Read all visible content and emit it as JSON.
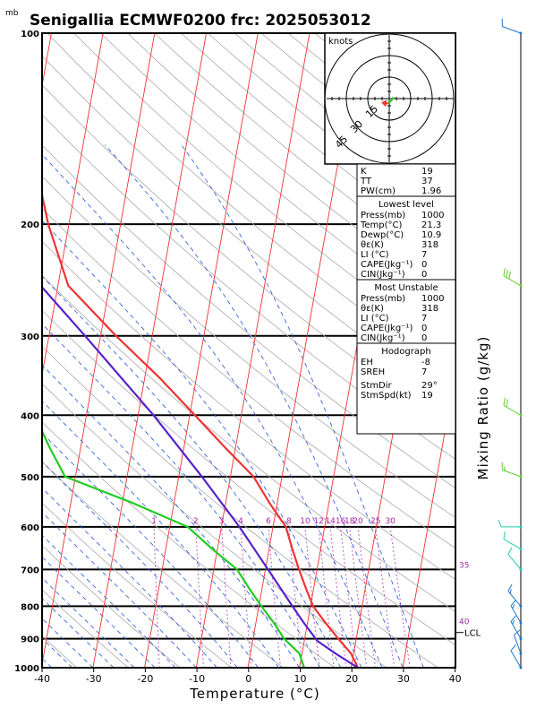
{
  "title": "Senigallia ECMWF0200  frc: 2025053012",
  "pressure_unit": "mb",
  "x_axis_label": "Temperature (°C)",
  "mixing_ratio_label": "Mixing Ratio (g/kg)",
  "hodograph": {
    "unit_label": "knots",
    "ring_labels": [
      "15",
      "30",
      "45"
    ]
  },
  "lcl_label": "LCL",
  "mixing_ratio_lines": [
    "1",
    "2",
    "3",
    "4",
    "6",
    "8",
    "10",
    "12",
    "14",
    "16",
    "18",
    "20",
    "25",
    "30"
  ],
  "theta_label_values": [
    "35",
    "40"
  ],
  "indices": {
    "rows": [
      {
        "label": "K",
        "value": "19"
      },
      {
        "label": "TT",
        "value": "37"
      },
      {
        "label": "PW(cm)",
        "value": "1.96"
      }
    ]
  },
  "lowest_level": {
    "header": "Lowest level",
    "rows": [
      {
        "label": "Press(mb)",
        "value": "1000"
      },
      {
        "label": "Temp(°C)",
        "value": "21.3"
      },
      {
        "label": "Dewp(°C)",
        "value": "10.9"
      },
      {
        "label": "θε(K)",
        "value": "318"
      },
      {
        "label": "LI (°C)",
        "value": "7"
      },
      {
        "label": "CAPE(Jkg⁻¹)",
        "value": "0"
      },
      {
        "label": "CIN(Jkg⁻¹)",
        "value": "0"
      }
    ]
  },
  "most_unstable": {
    "header": "Most Unstable",
    "rows": [
      {
        "label": "Press(mb)",
        "value": "1000"
      },
      {
        "label": "θε(K)",
        "value": "318"
      },
      {
        "label": "LI (°C)",
        "value": "7"
      },
      {
        "label": "CAPE(Jkg⁻¹)",
        "value": "0"
      },
      {
        "label": "CIN(Jkg⁻¹)",
        "value": "0"
      }
    ]
  },
  "hodograph_box": {
    "header": "Hodograph",
    "rows": [
      {
        "label": "EH",
        "value": "-8"
      },
      {
        "label": "SREH",
        "value": "7"
      },
      {
        "label": "StmDir",
        "value": "29°"
      },
      {
        "label": "StmSpd(kt)",
        "value": "19"
      }
    ]
  },
  "colors": {
    "temperature": "#ee3333",
    "dewpoint": "#22cc22",
    "parcel": "#5522cc",
    "isotherm": "#ee3333",
    "dry_adiabat": "#aaaaaa",
    "moist_adiabat": "#2255dd",
    "mixing_ratio": "#aa22aa",
    "wind_barbs_upper": "#2277cc",
    "wind_barbs_lower": "#22ccaa"
  },
  "chart_data": {
    "type": "line",
    "diagram": "skew-T log-p",
    "y_unit": "hPa",
    "x_unit": "°C",
    "y_scale": "log",
    "ylim": [
      1000,
      100
    ],
    "xlim": [
      -40,
      40
    ],
    "x_ticks": [
      -40,
      -30,
      -20,
      -10,
      0,
      10,
      20,
      30,
      40
    ],
    "y_ticks": [
      100,
      200,
      300,
      400,
      500,
      600,
      700,
      800,
      900,
      1000
    ],
    "series": [
      {
        "pressure": [
          1000,
          950,
          900,
          850,
          800,
          750,
          700,
          650,
          600,
          550,
          500,
          450,
          400,
          350,
          300,
          250,
          200,
          150,
          100
        ],
        "values": [
          21.3,
          19.5,
          16.5,
          13.5,
          10.5,
          8.5,
          6.5,
          4.5,
          2.5,
          -1.5,
          -5.5,
          -12,
          -19,
          -27,
          -37,
          -48,
          -54,
          -60,
          -66
        ]
      },
      {
        "pressure": [
          1000,
          950,
          900,
          850,
          800,
          750,
          700,
          650,
          600,
          550,
          500,
          450,
          400,
          350,
          300,
          250,
          200,
          150,
          100
        ],
        "values": [
          10.9,
          9.5,
          6,
          3.5,
          0.5,
          -2.5,
          -5.5,
          -11,
          -16.5,
          -28,
          -42,
          -46,
          -50,
          -54,
          -58,
          -63,
          -68,
          -73,
          -79
        ]
      },
      {
        "pressure": [
          1000,
          950,
          907,
          850,
          800,
          700,
          600,
          500,
          400,
          300,
          200,
          120
        ],
        "values": [
          21.3,
          16.5,
          12.5,
          9.3,
          6.5,
          0.5,
          -6.5,
          -15.5,
          -27,
          -43,
          -66,
          -86
        ]
      }
    ],
    "wind_barbs": [
      {
        "pressure": 100,
        "dir": 290,
        "speed": 10
      },
      {
        "pressure": 250,
        "dir": 300,
        "speed": 30
      },
      {
        "pressure": 400,
        "dir": 300,
        "speed": 20
      },
      {
        "pressure": 500,
        "dir": 290,
        "speed": 15
      },
      {
        "pressure": 600,
        "dir": 270,
        "speed": 10
      },
      {
        "pressure": 650,
        "dir": 300,
        "speed": 10
      },
      {
        "pressure": 700,
        "dir": 320,
        "speed": 10
      },
      {
        "pressure": 800,
        "dir": 320,
        "speed": 15
      },
      {
        "pressure": 850,
        "dir": 330,
        "speed": 15
      },
      {
        "pressure": 900,
        "dir": 330,
        "speed": 15
      },
      {
        "pressure": 950,
        "dir": 340,
        "speed": 10
      },
      {
        "pressure": 1000,
        "dir": 330,
        "speed": 10
      }
    ],
    "hodograph_points": [
      {
        "u": 3,
        "v": 1
      },
      {
        "u": 1,
        "v": -2
      },
      {
        "u": -1,
        "v": -3
      },
      {
        "u": -3,
        "v": -4
      }
    ],
    "lcl_pressure": 880
  }
}
